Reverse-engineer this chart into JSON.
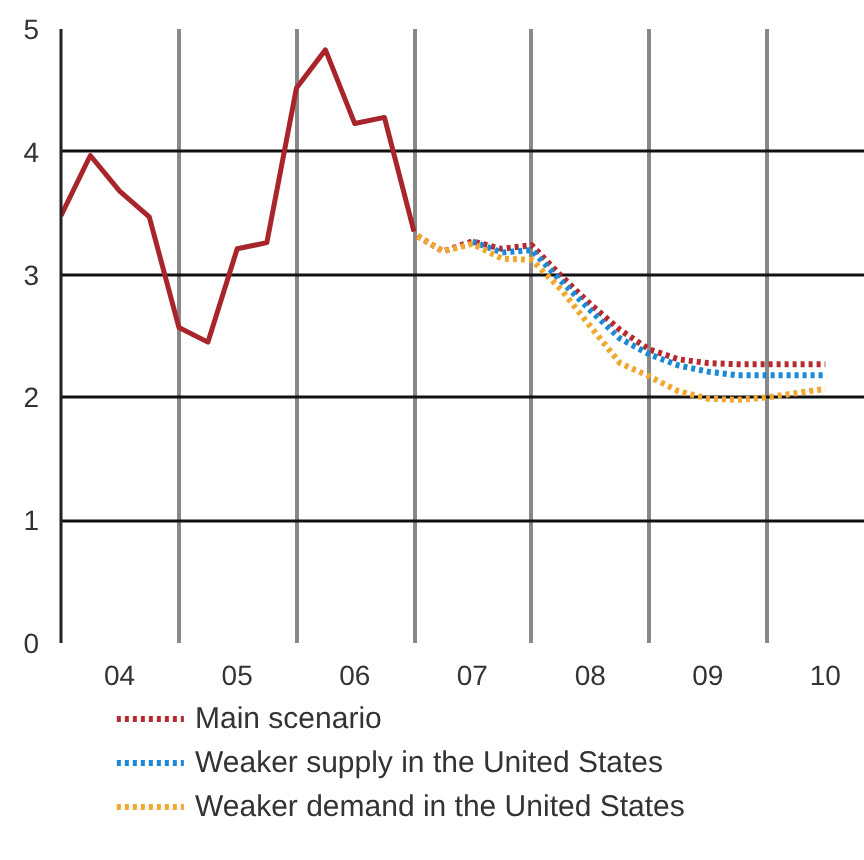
{
  "chart_data": {
    "type": "line",
    "series": [
      {
        "color": "#a8262b",
        "line_style": "solid",
        "x": [
          "2004-01",
          "2004-04",
          "2004-07",
          "2004-10",
          "2005-01",
          "2005-04",
          "2005-07",
          "2005-10",
          "2006-01",
          "2006-04",
          "2006-07",
          "2006-10",
          "2007-01"
        ],
        "values": [
          3.48,
          3.97,
          3.68,
          3.47,
          2.57,
          2.45,
          3.21,
          3.26,
          4.52,
          4.83,
          4.23,
          4.28,
          3.35
        ]
      },
      {
        "name": "Main scenario",
        "color": "#b52a30",
        "line_style": "dotted",
        "x": [
          "2007-01",
          "2007-04",
          "2007-07",
          "2007-10",
          "2008-01",
          "2008-04",
          "2008-07",
          "2008-10",
          "2009-01",
          "2009-04",
          "2009-07",
          "2009-10",
          "2010-01",
          "2010-07"
        ],
        "values": [
          3.33,
          3.19,
          3.27,
          3.21,
          3.24,
          2.99,
          2.76,
          2.55,
          2.39,
          2.31,
          2.28,
          2.27,
          2.27,
          2.27
        ]
      },
      {
        "name": "Weaker supply in the United States",
        "color": "#1a8ad4",
        "line_style": "dotted",
        "x": [
          "2007-07",
          "2007-10",
          "2008-01",
          "2008-04",
          "2008-07",
          "2008-10",
          "2009-01",
          "2009-04",
          "2009-07",
          "2009-10",
          "2010-01",
          "2010-07"
        ],
        "values": [
          3.27,
          3.18,
          3.2,
          2.95,
          2.71,
          2.48,
          2.35,
          2.26,
          2.21,
          2.18,
          2.18,
          2.18
        ]
      },
      {
        "name": "Weaker demand in the United States",
        "color": "#f0a830",
        "line_style": "dotted",
        "x": [
          "2007-01",
          "2007-04",
          "2007-07",
          "2007-10",
          "2008-01",
          "2008-04",
          "2008-07",
          "2008-10",
          "2009-01",
          "2009-04",
          "2009-07",
          "2009-10",
          "2010-01",
          "2010-07"
        ],
        "values": [
          3.33,
          3.19,
          3.25,
          3.13,
          3.12,
          2.88,
          2.58,
          2.28,
          2.17,
          2.05,
          1.99,
          1.98,
          2.0,
          2.07
        ]
      }
    ],
    "xlim": [
      "2004-01",
      "2010-11"
    ],
    "xticks": [
      {
        "value": "2004-07",
        "label": "04"
      },
      {
        "value": "2005-01",
        "label": null
      },
      {
        "value": "2005-07",
        "label": "05"
      },
      {
        "value": "2006-01",
        "label": null
      },
      {
        "value": "2006-07",
        "label": "06"
      },
      {
        "value": "2007-01",
        "label": null
      },
      {
        "value": "2007-07",
        "label": "07"
      },
      {
        "value": "2008-01",
        "label": null
      },
      {
        "value": "2008-07",
        "label": "08"
      },
      {
        "value": "2009-01",
        "label": null
      },
      {
        "value": "2009-07",
        "label": "09"
      },
      {
        "value": "2010-01",
        "label": null
      },
      {
        "value": "2010-07",
        "label": "10"
      }
    ],
    "ylim": [
      0,
      5
    ],
    "yticks": [
      0,
      1,
      2,
      3,
      4,
      5
    ],
    "grid": true,
    "legend": "bottom"
  }
}
